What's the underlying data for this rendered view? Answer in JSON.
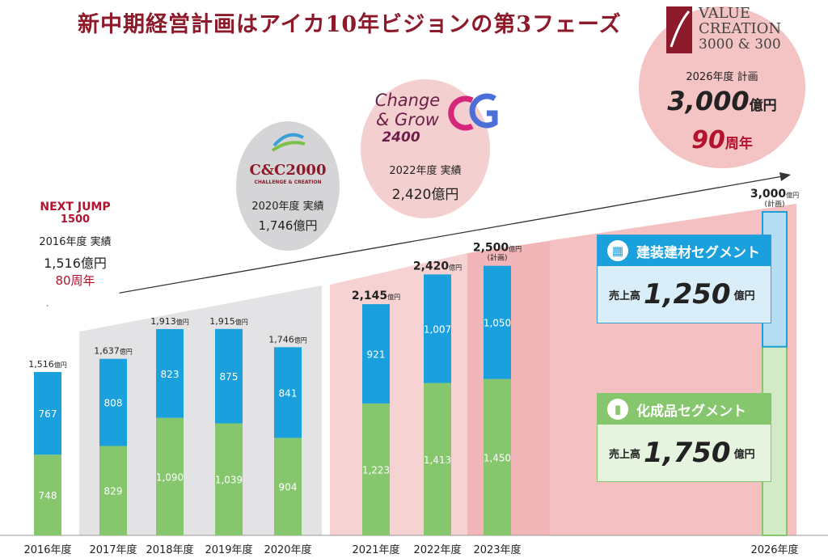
{
  "title": "新中期経営計画はアイカ10年ビジョンの第3フェーズ",
  "colors": {
    "building": "#1aa0dc",
    "chemical": "#86c66d",
    "accent": "#b3132e",
    "title": "#8c1a2a"
  },
  "circles": {
    "nextjump": {
      "logo_line1": "NEXT JUMP",
      "logo_line2": "1500",
      "label": "2016年度 実績",
      "value": "1,516億円",
      "anniv": "80周年"
    },
    "cc2000": {
      "logo": "C&C2000",
      "logo_sub": "CHALLENGE & CREATION",
      "label": "2020年度 実績",
      "value": "1,746億円"
    },
    "cg2400": {
      "logo_line1": "Change",
      "logo_line2": "& Grow",
      "logo_line3": "2400",
      "label": "2022年度 実績",
      "value": "2,420億円"
    },
    "vc": {
      "logo_line1": "VALUE",
      "logo_line2": "CREATION",
      "logo_line3": "3000 & 300",
      "label": "2026年度 計画",
      "value_num": "3,000",
      "value_unit": "億円",
      "anniv_num": "90",
      "anniv_unit": "周年"
    }
  },
  "segments": {
    "building": {
      "name": "建装建材セグメント",
      "sales_label": "売上高",
      "value": "1,250",
      "unit": "億円",
      "icon": "building-icon"
    },
    "chemical": {
      "name": "化成品セグメント",
      "sales_label": "売上高",
      "value": "1,750",
      "unit": "億円",
      "icon": "chemical-icon"
    }
  },
  "chart_data": {
    "type": "bar",
    "stacked": true,
    "categories": [
      "2016年度",
      "2017年度",
      "2018年度",
      "2019年度",
      "2020年度",
      "2021年度",
      "2022年度",
      "2023年度",
      "2026年度"
    ],
    "series": [
      {
        "values": [
          748,
          829,
          1090,
          1039,
          904,
          1223,
          1413,
          1450,
          1750
        ]
      },
      {
        "values": [
          767,
          808,
          823,
          875,
          841,
          921,
          1007,
          1050,
          1250
        ]
      }
    ],
    "totals": [
      "1,516",
      "1,637",
      "1,913",
      "1,915",
      "1,746",
      "2,145",
      "2,420",
      "2,500",
      "3,000"
    ],
    "total_unit": "億円",
    "plan_label": "(計画)",
    "bottom_labels": [
      "748",
      "829",
      "1,090",
      "1,039",
      "904",
      "1,223",
      "1,413",
      "1,450",
      ""
    ],
    "top_labels": [
      "767",
      "808",
      "823",
      "875",
      "841",
      "921",
      "1,007",
      "1,050",
      ""
    ],
    "ylim": [
      0,
      3000
    ],
    "grid": false
  }
}
